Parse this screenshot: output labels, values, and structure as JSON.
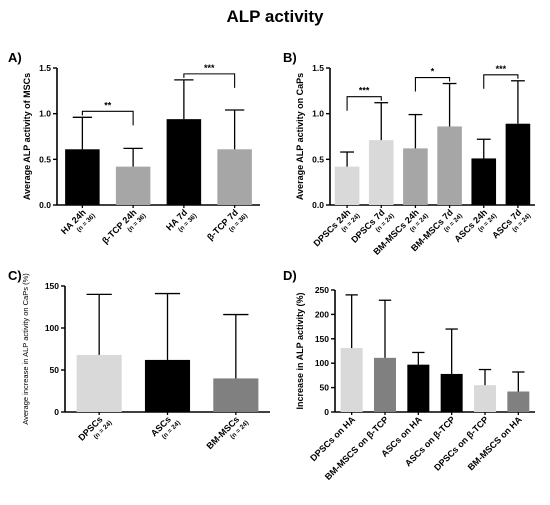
{
  "title": "ALP activity",
  "colors": {
    "black": "#000000",
    "dark_gray": "#808080",
    "mid_gray": "#a6a6a6",
    "light_gray": "#d9d9d9"
  },
  "chart_data": [
    {
      "panel": "A)",
      "type": "bar",
      "ylabel": "Average ALP activity of MSCs",
      "ylim": [
        0,
        1.5
      ],
      "yticks": [
        "0.0",
        "0.5",
        "1.0",
        "1.5"
      ],
      "categories": [
        "HA 24h",
        "β-TCP 24h",
        "HA 7d",
        "β-TCP 7d"
      ],
      "category_notes": [
        "(n = 36)",
        "(n = 36)",
        "(n = 36)",
        "(n = 36)"
      ],
      "values": [
        0.61,
        0.42,
        0.94,
        0.61
      ],
      "errors_upper": [
        0.96,
        0.62,
        1.37,
        1.04
      ],
      "bar_colors": [
        "#000000",
        "#a6a6a6",
        "#000000",
        "#a6a6a6"
      ],
      "significance": [
        {
          "from": 0,
          "to": 1,
          "label": "**"
        },
        {
          "from": 2,
          "to": 3,
          "label": "***"
        }
      ]
    },
    {
      "panel": "B)",
      "type": "bar",
      "ylabel": "Average ALP activity on CaPs",
      "ylim": [
        0,
        1.5
      ],
      "yticks": [
        "0.0",
        "0.5",
        "1.0",
        "1.5"
      ],
      "categories": [
        "DPSCs 24h",
        "DPSCs 7d",
        "BM-MSCs 24h",
        "BM-MSCs 7d",
        "ASCs 24h",
        "ASCs 7d"
      ],
      "category_notes": [
        "(n = 24)",
        "(n = 24)",
        "(n = 24)",
        "(n = 24)",
        "(n = 24)",
        "(n = 24)"
      ],
      "values": [
        0.42,
        0.71,
        0.62,
        0.86,
        0.51,
        0.89
      ],
      "errors_upper": [
        0.58,
        1.12,
        0.99,
        1.33,
        0.72,
        1.36
      ],
      "bar_colors": [
        "#d9d9d9",
        "#d9d9d9",
        "#a6a6a6",
        "#a6a6a6",
        "#000000",
        "#000000"
      ],
      "significance": [
        {
          "from": 0,
          "to": 1,
          "label": "***"
        },
        {
          "from": 2,
          "to": 3,
          "label": "*"
        },
        {
          "from": 4,
          "to": 5,
          "label": "***"
        }
      ]
    },
    {
      "panel": "C)",
      "type": "bar",
      "ylabel": "Average increase in ALP activity on CaPs (%)",
      "ylim": [
        0,
        150
      ],
      "yticks": [
        "0",
        "50",
        "100",
        "150"
      ],
      "categories": [
        "DPSCs",
        "ASCs",
        "BM-MSCs"
      ],
      "category_notes": [
        "(n = 24)",
        "(n = 24)",
        "(n = 24)"
      ],
      "values": [
        68,
        62,
        40
      ],
      "errors_upper": [
        140,
        141,
        116
      ],
      "bar_colors": [
        "#d9d9d9",
        "#000000",
        "#808080"
      ],
      "significance": []
    },
    {
      "panel": "D)",
      "type": "bar",
      "ylabel": "Increase in ALP activity (%)",
      "ylim": [
        0,
        250
      ],
      "yticks": [
        "0",
        "50",
        "100",
        "150",
        "200",
        "250"
      ],
      "categories": [
        "DPSCs on HA",
        "BM-MSCS on β-TCP",
        "ASCs on HA",
        "ASCs on β-TCP",
        "DPSCs on β-TCP",
        "BM-MSCS on HA"
      ],
      "category_notes": [
        "",
        "",
        "",
        "",
        "",
        ""
      ],
      "values": [
        131,
        111,
        97,
        78,
        55,
        42
      ],
      "errors_upper": [
        240,
        229,
        122,
        170,
        87,
        82
      ],
      "bar_colors": [
        "#d9d9d9",
        "#808080",
        "#000000",
        "#000000",
        "#d9d9d9",
        "#808080"
      ],
      "significance": []
    }
  ]
}
